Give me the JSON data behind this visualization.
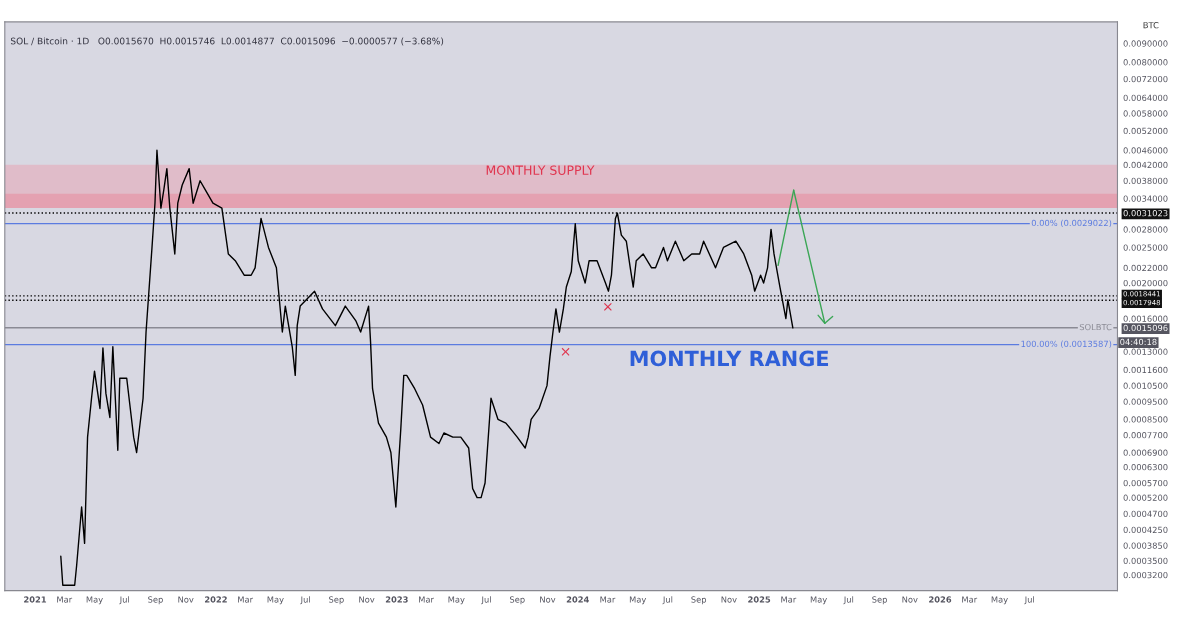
{
  "chart_data": {
    "type": "line",
    "title": "SOL / Bitcoin · 1D   O0.0015670  H0.0015746  L0.0014877  C0.0015096  −0.0000577 (−3.68%)",
    "ylabel": "BTC",
    "log": true,
    "grid": false,
    "legend": false,
    "marker": "none",
    "line_style": "solid",
    "xlim": [
      "2020-11-01",
      "2026-12-25"
    ],
    "xticks": [
      {
        "value": "2021-01-01",
        "label": "2021"
      },
      {
        "value": "2021-03-01",
        "label": "Mar"
      },
      {
        "value": "2021-05-01",
        "label": "May"
      },
      {
        "value": "2021-07-01",
        "label": "Jul"
      },
      {
        "value": "2021-09-01",
        "label": "Sep"
      },
      {
        "value": "2021-11-01",
        "label": "Nov"
      },
      {
        "value": "2022-01-01",
        "label": "2022"
      },
      {
        "value": "2022-03-01",
        "label": "Mar"
      },
      {
        "value": "2022-05-01",
        "label": "May"
      },
      {
        "value": "2022-07-01",
        "label": "Jul"
      },
      {
        "value": "2022-09-01",
        "label": "Sep"
      },
      {
        "value": "2022-11-01",
        "label": "Nov"
      },
      {
        "value": "2023-01-01",
        "label": "2023"
      },
      {
        "value": "2023-03-01",
        "label": "Mar"
      },
      {
        "value": "2023-05-01",
        "label": "May"
      },
      {
        "value": "2023-07-01",
        "label": "Jul"
      },
      {
        "value": "2023-09-01",
        "label": "Sep"
      },
      {
        "value": "2023-11-01",
        "label": "Nov"
      },
      {
        "value": "2024-01-01",
        "label": "2024"
      },
      {
        "value": "2024-03-01",
        "label": "Mar"
      },
      {
        "value": "2024-05-01",
        "label": "May"
      },
      {
        "value": "2024-07-01",
        "label": "Jul"
      },
      {
        "value": "2024-09-01",
        "label": "Sep"
      },
      {
        "value": "2024-11-01",
        "label": "Nov"
      },
      {
        "value": "2025-01-01",
        "label": "2025"
      },
      {
        "value": "2025-03-01",
        "label": "Mar"
      },
      {
        "value": "2025-05-01",
        "label": "May"
      },
      {
        "value": "2025-07-01",
        "label": "Jul"
      },
      {
        "value": "2025-09-01",
        "label": "Sep"
      },
      {
        "value": "2025-11-01",
        "label": "Nov"
      },
      {
        "value": "2026-01-01",
        "label": "2026"
      },
      {
        "value": "2026-03-01",
        "label": "Mar"
      },
      {
        "value": "2026-05-01",
        "label": "May"
      },
      {
        "value": "2026-07-01",
        "label": "Jul"
      }
    ],
    "ylim": [
      0.00029,
      0.0103
    ],
    "yticks": [
      {
        "value": 0.009,
        "label": "0.0090000"
      },
      {
        "value": 0.008,
        "label": "0.0080000"
      },
      {
        "value": 0.0072,
        "label": "0.0072000"
      },
      {
        "value": 0.0064,
        "label": "0.0064000"
      },
      {
        "value": 0.0058,
        "label": "0.0058000"
      },
      {
        "value": 0.0052,
        "label": "0.0052000"
      },
      {
        "value": 0.0046,
        "label": "0.0046000"
      },
      {
        "value": 0.0042,
        "label": "0.0042000"
      },
      {
        "value": 0.0038,
        "label": "0.0038000"
      },
      {
        "value": 0.0034,
        "label": "0.0034000"
      },
      {
        "value": 0.0031023,
        "label": "0.0031023"
      },
      {
        "value": 0.0028,
        "label": "0.0028000"
      },
      {
        "value": 0.0025,
        "label": "0.0025000"
      },
      {
        "value": 0.0022,
        "label": "0.0022000"
      },
      {
        "value": 0.002,
        "label": "0.0020000"
      },
      {
        "value": 0.0018441,
        "label": "0.0018441"
      },
      {
        "value": 0.0017948,
        "label": "0.0017948"
      },
      {
        "value": 0.0016,
        "label": "0.0016000"
      },
      {
        "value": 0.0015096,
        "label": "0.0015096"
      },
      {
        "value": 0.0013,
        "label": "0.0013000"
      },
      {
        "value": 0.00116,
        "label": "0.0011600"
      },
      {
        "value": 0.00105,
        "label": "0.0010500"
      },
      {
        "value": 0.00095,
        "label": "0.0009500"
      },
      {
        "value": 0.00085,
        "label": "0.0008500"
      },
      {
        "value": 0.00077,
        "label": "0.0007700"
      },
      {
        "value": 0.00069,
        "label": "0.0006900"
      },
      {
        "value": 0.00063,
        "label": "0.0006300"
      },
      {
        "value": 0.00057,
        "label": "0.0005700"
      },
      {
        "value": 0.00052,
        "label": "0.0005200"
      },
      {
        "value": 0.00047,
        "label": "0.0004700"
      },
      {
        "value": 0.000425,
        "label": "0.0004250"
      },
      {
        "value": 0.000385,
        "label": "0.0003850"
      },
      {
        "value": 0.00035,
        "label": "0.0003500"
      },
      {
        "value": 0.00032,
        "label": "0.0003200"
      }
    ],
    "x": [
      "2021-02-22",
      "2021-02-26",
      "2021-03-22",
      "2021-03-26",
      "2021-04-05",
      "2021-04-11",
      "2021-04-17",
      "2021-04-25",
      "2021-05-01",
      "2021-05-12",
      "2021-05-18",
      "2021-05-24",
      "2021-06-01",
      "2021-06-07",
      "2021-06-17",
      "2021-06-21",
      "2021-07-05",
      "2021-07-19",
      "2021-07-25",
      "2021-08-07",
      "2021-08-13",
      "2021-08-25",
      "2021-08-31",
      "2021-09-04",
      "2021-09-12",
      "2021-09-18",
      "2021-09-24",
      "2021-09-30",
      "2021-10-10",
      "2021-10-16",
      "2021-10-25",
      "2021-11-08",
      "2021-11-16",
      "2021-11-30",
      "2021-12-10",
      "2021-12-26",
      "2022-01-13",
      "2022-01-26",
      "2022-02-09",
      "2022-02-27",
      "2022-03-13",
      "2022-03-21",
      "2022-04-02",
      "2022-04-17",
      "2022-05-03",
      "2022-05-09",
      "2022-05-15",
      "2022-05-21",
      "2022-06-04",
      "2022-06-10",
      "2022-06-14",
      "2022-06-20",
      "2022-07-19",
      "2022-08-04",
      "2022-08-30",
      "2022-09-19",
      "2022-10-10",
      "2022-10-20",
      "2022-11-05",
      "2022-11-09",
      "2022-11-13",
      "2022-11-25",
      "2022-12-11",
      "2022-12-20",
      "2022-12-30",
      "2023-01-09",
      "2023-01-15",
      "2023-01-21",
      "2023-02-06",
      "2023-02-22",
      "2023-03-10",
      "2023-03-27",
      "2023-04-06",
      "2023-04-24",
      "2023-05-10",
      "2023-05-26",
      "2023-06-03",
      "2023-06-12",
      "2023-06-20",
      "2023-06-28",
      "2023-07-10",
      "2023-07-24",
      "2023-08-09",
      "2023-09-01",
      "2023-09-17",
      "2023-09-23",
      "2023-09-29",
      "2023-10-15",
      "2023-10-31",
      "2023-11-06",
      "2023-11-12",
      "2023-11-18",
      "2023-11-25",
      "2023-12-03",
      "2023-12-09",
      "2023-12-19",
      "2023-12-27",
      "2024-01-02",
      "2024-01-16",
      "2024-01-24",
      "2024-02-09",
      "2024-02-26",
      "2024-03-03",
      "2024-03-09",
      "2024-03-17",
      "2024-03-21",
      "2024-03-29",
      "2024-04-08",
      "2024-04-16",
      "2024-04-22",
      "2024-04-28",
      "2024-05-12",
      "2024-05-29",
      "2024-06-06",
      "2024-06-22",
      "2024-06-30",
      "2024-07-16",
      "2024-08-02",
      "2024-08-18",
      "2024-09-03",
      "2024-09-11",
      "2024-10-05",
      "2024-10-21",
      "2024-11-15",
      "2024-12-01",
      "2024-12-17",
      "2024-12-23",
      "2025-01-04",
      "2025-01-10",
      "2025-01-18",
      "2025-01-25",
      "2025-01-31",
      "2025-02-12",
      "2025-02-24",
      "2025-02-28",
      "2025-03-10"
    ],
    "series": [
      {
        "color": "#000000",
        "values": [
          0.00036,
          0.0003,
          0.0003,
          0.00034,
          0.00049,
          0.00039,
          0.00076,
          0.00097,
          0.00115,
          0.00091,
          0.00133,
          0.001,
          0.00086,
          0.00134,
          0.0007,
          0.0011,
          0.0011,
          0.00076,
          0.00069,
          0.00097,
          0.00147,
          0.0025,
          0.0033,
          0.0046,
          0.0032,
          0.0036,
          0.0041,
          0.0032,
          0.0024,
          0.0033,
          0.0037,
          0.0041,
          0.0033,
          0.0038,
          0.0036,
          0.0033,
          0.0032,
          0.0024,
          0.0023,
          0.0021,
          0.0021,
          0.0022,
          0.003,
          0.0025,
          0.0022,
          0.0018,
          0.00147,
          0.00173,
          0.00134,
          0.00112,
          0.00153,
          0.00173,
          0.0019,
          0.0017,
          0.00153,
          0.00173,
          0.00158,
          0.00147,
          0.00173,
          0.00138,
          0.00103,
          0.00083,
          0.00076,
          0.00069,
          0.00049,
          0.0008,
          0.00112,
          0.00112,
          0.00103,
          0.00093,
          0.00076,
          0.00073,
          0.00078,
          0.00076,
          0.00076,
          0.00071,
          0.00055,
          0.00052,
          0.00052,
          0.00057,
          0.00097,
          0.00085,
          0.00083,
          0.00076,
          0.00071,
          0.00076,
          0.00085,
          0.00091,
          0.00105,
          0.00126,
          0.00147,
          0.0017,
          0.00147,
          0.0017,
          0.00195,
          0.00215,
          0.0029,
          0.0023,
          0.002,
          0.0023,
          0.0023,
          0.002,
          0.0019,
          0.0021,
          0.003,
          0.0031,
          0.0027,
          0.0026,
          0.0022,
          0.00195,
          0.0023,
          0.0024,
          0.0022,
          0.0022,
          0.0025,
          0.0023,
          0.0026,
          0.0023,
          0.0024,
          0.0024,
          0.0026,
          0.0022,
          0.0025,
          0.0026,
          0.0024,
          0.0021,
          0.0019,
          0.0021,
          0.002,
          0.0022,
          0.0028,
          0.0024,
          0.00195,
          0.0016,
          0.0018,
          0.0015096
        ]
      }
    ],
    "bands": [
      {
        "axis": "y",
        "from": 0.0032,
        "to": 0.0042,
        "color": "#e8a6b4",
        "label": "MONTHLY SUPPLY"
      },
      {
        "axis": "y",
        "from": 0.0032,
        "to": 0.0035,
        "color": "#e88a9c",
        "label": null
      }
    ],
    "ref_lines": [
      {
        "axis": "y",
        "value": 0.0031023,
        "label": null,
        "color": "#000000",
        "line_style": "dotted"
      },
      {
        "axis": "y",
        "value": 0.0029022,
        "label": "0.00% (0.0029022)",
        "color": "#5b7be0",
        "line_style": "solid"
      },
      {
        "axis": "y",
        "value": 0.0018441,
        "label": null,
        "color": "#000000",
        "line_style": "dotted"
      },
      {
        "axis": "y",
        "value": 0.0017948,
        "label": null,
        "color": "#000000",
        "line_style": "dotted"
      },
      {
        "axis": "y",
        "value": 0.0015096,
        "label": "SOLBTC",
        "color": "#8a8a94",
        "line_style": "solid"
      },
      {
        "axis": "y",
        "value": 0.0013587,
        "label": "100.00% (0.0013587)",
        "color": "#5b7be0",
        "line_style": "solid"
      }
    ],
    "annotations": [
      "MONTHLY RANGE",
      "×",
      "×",
      "04:40:18"
    ]
  }
}
